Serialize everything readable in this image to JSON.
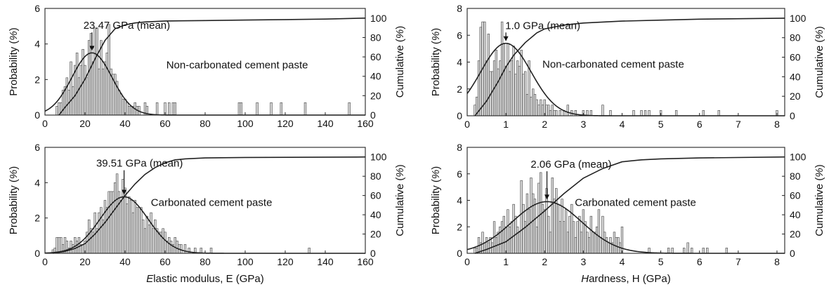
{
  "chart_data": [
    {
      "type": "bar",
      "panel": "top-left",
      "annotation": "Non-carbonated cement paste",
      "mean_label": "23.47 GPa (mean)",
      "mean_value": 23.47,
      "xlim": [
        0,
        160
      ],
      "xticks": [
        "0",
        "20",
        "40",
        "60",
        "80",
        "100",
        "120",
        "140",
        "160"
      ],
      "xlabel": "",
      "ylabel_left": "Probability (%)",
      "ylim_left": [
        0,
        6
      ],
      "yticks_left": [
        "0",
        "2",
        "4",
        "6"
      ],
      "ylabel_right": "Cumulative (%)",
      "ylim_right": [
        0,
        110
      ],
      "yticks_right": [
        "0",
        "20",
        "40",
        "60",
        "80",
        "100"
      ],
      "histogram": {
        "bin_width": 1,
        "x": [
          6,
          7,
          8,
          9,
          10,
          11,
          12,
          13,
          14,
          15,
          16,
          17,
          18,
          19,
          20,
          21,
          22,
          23,
          24,
          25,
          26,
          27,
          28,
          29,
          30,
          31,
          32,
          33,
          34,
          35,
          36,
          37,
          38,
          39,
          40,
          41,
          42,
          43,
          44,
          45,
          46,
          47,
          50,
          51,
          56,
          60,
          62,
          64,
          65,
          97,
          98,
          106,
          113,
          118,
          130,
          152
        ],
        "values": [
          0.5,
          0.7,
          0.7,
          1.4,
          1.6,
          2.1,
          1.4,
          3.0,
          1.6,
          2.8,
          3.5,
          2.1,
          2.8,
          3.7,
          2.8,
          2.1,
          4.2,
          4.6,
          3.0,
          4.9,
          4.9,
          2.6,
          4.2,
          2.6,
          3.0,
          3.5,
          5.1,
          2.6,
          2.3,
          2.3,
          1.9,
          1.4,
          1.2,
          0.9,
          0.9,
          0.7,
          0.5,
          0.5,
          0.5,
          0.7,
          0.5,
          0.5,
          0.7,
          0.5,
          0.7,
          0.7,
          0.7,
          0.7,
          0.7,
          0.7,
          0.7,
          0.7,
          0.7,
          0.7,
          0.7,
          0.7
        ]
      },
      "fit_curve": {
        "mean": 23.47,
        "peak": 3.5,
        "sd": 10
      },
      "cumulative": {
        "x": [
          7,
          10,
          15,
          20,
          25,
          30,
          35,
          40,
          45,
          50,
          60,
          80,
          100,
          120,
          140,
          160
        ],
        "y": [
          0,
          8,
          20,
          37,
          58,
          77,
          89,
          93,
          95,
          96,
          97,
          97.5,
          98,
          98.5,
          99,
          100
        ]
      }
    },
    {
      "type": "bar",
      "panel": "bottom-left",
      "annotation": "Carbonated cement paste",
      "mean_label": "39.51 GPa (mean)",
      "mean_value": 39.51,
      "xlim": [
        0,
        160
      ],
      "xticks": [
        "0",
        "20",
        "40",
        "60",
        "80",
        "100",
        "120",
        "140",
        "160"
      ],
      "xlabel": "Elastic modulus, E (GPa)",
      "ylabel_left": "Probability (%)",
      "ylim_left": [
        0,
        6
      ],
      "yticks_left": [
        "0",
        "2",
        "4",
        "6"
      ],
      "ylabel_right": "Cumulative (%)",
      "ylim_right": [
        0,
        110
      ],
      "yticks_right": [
        "0",
        "20",
        "40",
        "60",
        "80",
        "100"
      ],
      "histogram": {
        "bin_width": 1,
        "x": [
          4,
          5,
          6,
          7,
          8,
          9,
          10,
          11,
          12,
          13,
          14,
          15,
          16,
          17,
          18,
          19,
          20,
          21,
          22,
          23,
          24,
          25,
          26,
          27,
          28,
          29,
          30,
          31,
          32,
          33,
          34,
          35,
          36,
          37,
          38,
          39,
          40,
          41,
          42,
          43,
          44,
          45,
          46,
          47,
          48,
          49,
          50,
          51,
          52,
          53,
          54,
          55,
          56,
          57,
          58,
          59,
          60,
          61,
          62,
          63,
          64,
          65,
          66,
          67,
          68,
          70,
          72,
          75,
          78,
          83,
          132
        ],
        "values": [
          0.2,
          0.3,
          0.9,
          0.9,
          0.9,
          0.5,
          0.9,
          0.7,
          0.3,
          0.7,
          0.5,
          0.9,
          0.7,
          0.9,
          0.5,
          0.5,
          0.7,
          1.2,
          1.9,
          1.4,
          1.2,
          2.3,
          1.4,
          2.3,
          2.6,
          1.9,
          3.0,
          2.6,
          3.5,
          3.5,
          3.5,
          4.0,
          4.5,
          3.5,
          3.0,
          4.2,
          3.7,
          2.8,
          3.2,
          3.0,
          2.3,
          3.0,
          2.6,
          2.6,
          2.6,
          1.9,
          1.4,
          2.1,
          1.6,
          2.3,
          1.4,
          1.9,
          1.4,
          1.2,
          1.2,
          1.4,
          1.2,
          0.7,
          0.9,
          0.7,
          0.5,
          0.9,
          0.7,
          0.5,
          0.5,
          0.5,
          0.3,
          0.3,
          0.3,
          0.3,
          0.3
        ]
      },
      "fit_curve": {
        "mean": 39.51,
        "peak": 3.2,
        "sd": 12
      },
      "cumulative": {
        "x": [
          4,
          10,
          15,
          20,
          25,
          30,
          35,
          40,
          45,
          50,
          55,
          60,
          65,
          70,
          80,
          100,
          160
        ],
        "y": [
          0,
          2,
          5,
          10,
          20,
          32,
          46,
          60,
          72,
          82,
          89,
          94,
          97,
          98,
          99,
          99.5,
          100
        ]
      }
    },
    {
      "type": "bar",
      "panel": "top-right",
      "annotation": "Non-carbonated cement paste",
      "mean_label": "1.0 GPa (mean)",
      "mean_value": 1.0,
      "xlim": [
        0,
        8.2
      ],
      "xticks": [
        "0",
        "1",
        "2",
        "3",
        "4",
        "5",
        "6",
        "7",
        "8"
      ],
      "xlabel": "",
      "ylabel_left": "Probability (%)",
      "ylim_left": [
        0,
        8
      ],
      "yticks_left": [
        "0",
        "2",
        "4",
        "6",
        "8"
      ],
      "ylabel_right": "Cumulative (%)",
      "ylim_right": [
        0,
        110
      ],
      "yticks_right": [
        "0",
        "20",
        "40",
        "60",
        "80",
        "100"
      ],
      "histogram": {
        "bin_width": 0.05,
        "x": [
          0.2,
          0.25,
          0.3,
          0.35,
          0.4,
          0.45,
          0.5,
          0.55,
          0.6,
          0.65,
          0.7,
          0.75,
          0.8,
          0.85,
          0.9,
          0.95,
          1.0,
          1.05,
          1.1,
          1.15,
          1.2,
          1.25,
          1.3,
          1.35,
          1.4,
          1.45,
          1.5,
          1.55,
          1.6,
          1.65,
          1.7,
          1.75,
          1.8,
          1.85,
          1.9,
          1.95,
          2.0,
          2.05,
          2.1,
          2.15,
          2.2,
          2.25,
          2.3,
          2.4,
          2.5,
          2.6,
          2.7,
          2.8,
          3.0,
          3.1,
          3.2,
          3.5,
          3.7,
          4.3,
          4.5,
          4.6,
          4.7,
          5.0,
          5.4,
          6.1,
          6.5,
          8.0
        ],
        "values": [
          0.8,
          1.4,
          4.1,
          6.6,
          7.0,
          7.0,
          4.1,
          6.1,
          3.3,
          3.3,
          4.1,
          4.9,
          3.5,
          4.1,
          7.0,
          5.4,
          3.7,
          5.4,
          3.3,
          4.1,
          5.2,
          3.1,
          4.1,
          3.7,
          4.9,
          3.1,
          3.3,
          1.6,
          4.1,
          1.4,
          2.0,
          1.6,
          1.2,
          0.8,
          1.2,
          0.8,
          1.2,
          0.8,
          0.8,
          0.4,
          0.8,
          0.4,
          0.4,
          0.4,
          0.4,
          0.8,
          0.4,
          0.4,
          0.4,
          0.4,
          0.4,
          0.8,
          0.4,
          0.4,
          0.4,
          0.4,
          0.4,
          0.4,
          0.4,
          0.4,
          0.4,
          0.4
        ]
      },
      "fit_curve": {
        "mean": 1.0,
        "peak": 5.4,
        "sd": 0.65
      },
      "cumulative": {
        "x": [
          0.2,
          0.5,
          0.8,
          1.0,
          1.2,
          1.5,
          1.8,
          2.0,
          2.5,
          3.0,
          4.0,
          5.0,
          6.0,
          8.2
        ],
        "y": [
          0,
          15,
          35,
          50,
          62,
          75,
          85,
          89,
          93,
          95,
          97,
          98,
          99,
          100
        ]
      }
    },
    {
      "type": "bar",
      "panel": "bottom-right",
      "annotation": "Carbonated cement paste",
      "mean_label": "2.06 GPa (mean)",
      "mean_value": 2.06,
      "xlim": [
        0,
        8.2
      ],
      "xticks": [
        "0",
        "1",
        "2",
        "3",
        "4",
        "5",
        "6",
        "7",
        "8"
      ],
      "xlabel": "Hardness, H (GPa)",
      "ylabel_left": "Probability (%)",
      "ylim_left": [
        0,
        8
      ],
      "yticks_left": [
        "0",
        "2",
        "4",
        "6",
        "8"
      ],
      "ylabel_right": "Cumulative (%)",
      "ylim_right": [
        0,
        110
      ],
      "yticks_right": [
        "0",
        "20",
        "40",
        "60",
        "80",
        "100"
      ],
      "histogram": {
        "bin_width": 0.05,
        "x": [
          0.2,
          0.25,
          0.3,
          0.35,
          0.4,
          0.45,
          0.5,
          0.55,
          0.6,
          0.65,
          0.7,
          0.75,
          0.8,
          0.85,
          0.9,
          0.95,
          1.0,
          1.05,
          1.1,
          1.15,
          1.2,
          1.25,
          1.3,
          1.35,
          1.4,
          1.45,
          1.5,
          1.55,
          1.6,
          1.65,
          1.7,
          1.75,
          1.8,
          1.85,
          1.9,
          1.95,
          2.0,
          2.05,
          2.1,
          2.15,
          2.2,
          2.25,
          2.3,
          2.35,
          2.4,
          2.45,
          2.5,
          2.55,
          2.6,
          2.65,
          2.7,
          2.75,
          2.8,
          2.85,
          2.9,
          2.95,
          3.0,
          3.05,
          3.1,
          3.15,
          3.2,
          3.25,
          3.3,
          3.35,
          3.4,
          3.45,
          3.5,
          3.55,
          3.6,
          3.65,
          3.7,
          3.75,
          3.8,
          3.85,
          3.9,
          3.95,
          4.0,
          4.7,
          5.2,
          5.3,
          5.6,
          5.7,
          5.8,
          6.1,
          6.2,
          6.7
        ],
        "values": [
          0.4,
          0.4,
          1.2,
          0.8,
          1.6,
          0.8,
          1.2,
          0.8,
          1.2,
          0.8,
          2.4,
          1.2,
          1.6,
          2.0,
          2.4,
          2.8,
          2.0,
          3.3,
          2.0,
          2.4,
          3.7,
          2.8,
          2.0,
          1.6,
          5.5,
          3.7,
          2.4,
          4.5,
          3.3,
          5.7,
          4.5,
          4.1,
          2.0,
          5.3,
          6.1,
          3.7,
          3.3,
          4.9,
          2.8,
          1.6,
          5.7,
          4.1,
          4.9,
          3.7,
          2.4,
          4.1,
          2.4,
          3.3,
          1.6,
          2.8,
          3.7,
          2.4,
          1.2,
          2.4,
          2.8,
          1.6,
          3.3,
          2.4,
          1.6,
          1.2,
          2.8,
          1.6,
          1.6,
          2.0,
          3.3,
          1.2,
          2.8,
          1.6,
          1.2,
          0.8,
          1.2,
          0.8,
          1.6,
          1.2,
          1.2,
          0.8,
          2.0,
          0.4,
          0.4,
          0.4,
          0.4,
          0.8,
          0.4,
          0.4,
          0.4,
          0.4
        ]
      },
      "fit_curve": {
        "mean": 2.06,
        "peak": 3.9,
        "sd": 0.9
      },
      "cumulative": {
        "x": [
          0.2,
          0.5,
          1.0,
          1.5,
          2.0,
          2.5,
          3.0,
          3.5,
          4.0,
          4.5,
          5.0,
          6.0,
          8.2
        ],
        "y": [
          0,
          4,
          12,
          27,
          44,
          62,
          78,
          88,
          95,
          97,
          98,
          99,
          100
        ]
      }
    }
  ]
}
